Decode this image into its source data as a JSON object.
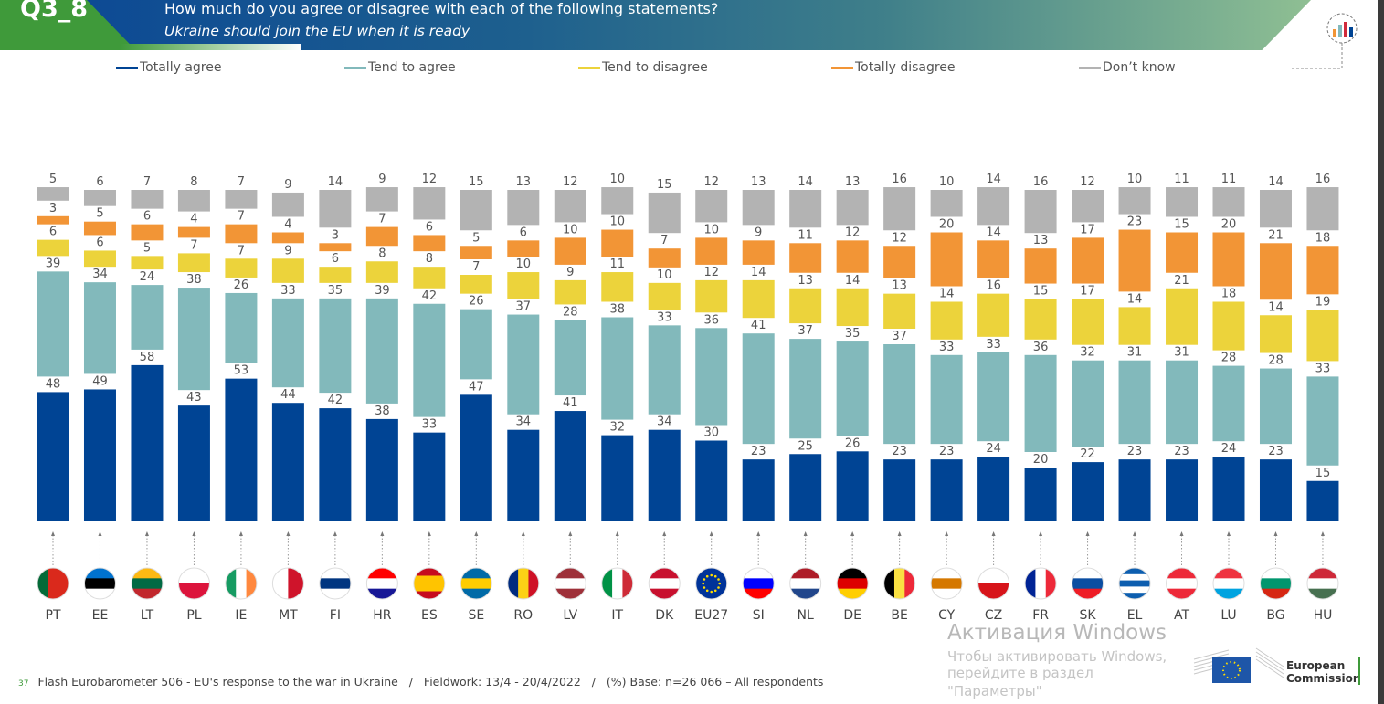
{
  "header": {
    "question_id": "Q3_8",
    "title": "How much do you agree or disagree with each of the following statements?",
    "subtitle": "Ukraine should join the EU when it is ready"
  },
  "chart_data": {
    "type": "bar",
    "stacked": true,
    "legend_placement": "top",
    "grid": false,
    "categories": [
      "PT",
      "EE",
      "LT",
      "PL",
      "IE",
      "MT",
      "FI",
      "HR",
      "ES",
      "SE",
      "RO",
      "LV",
      "IT",
      "DK",
      "EU27",
      "SI",
      "NL",
      "DE",
      "BE",
      "CY",
      "CZ",
      "FR",
      "SK",
      "EL",
      "AT",
      "LU",
      "BG",
      "HU"
    ],
    "series": [
      {
        "name": "Totally agree",
        "color": "#004494",
        "values": [
          48,
          49,
          58,
          43,
          53,
          44,
          42,
          38,
          33,
          47,
          34,
          41,
          32,
          34,
          30,
          23,
          25,
          26,
          23,
          23,
          24,
          20,
          22,
          23,
          23,
          24,
          23,
          15
        ]
      },
      {
        "name": "Tend to agree",
        "color": "#82b9bb",
        "values": [
          39,
          34,
          24,
          38,
          26,
          33,
          35,
          39,
          42,
          26,
          37,
          28,
          38,
          33,
          36,
          41,
          37,
          35,
          37,
          33,
          33,
          36,
          32,
          31,
          31,
          28,
          28,
          33
        ]
      },
      {
        "name": "Tend to disagree",
        "color": "#ecd33b",
        "values": [
          6,
          6,
          5,
          7,
          7,
          9,
          6,
          8,
          8,
          7,
          10,
          9,
          11,
          10,
          12,
          14,
          13,
          14,
          13,
          14,
          16,
          15,
          17,
          14,
          21,
          18,
          14,
          19
        ]
      },
      {
        "name": "Totally disagree",
        "color": "#f29536",
        "values": [
          3,
          5,
          6,
          4,
          7,
          4,
          3,
          7,
          6,
          5,
          6,
          10,
          10,
          7,
          10,
          9,
          11,
          12,
          12,
          20,
          14,
          13,
          17,
          23,
          15,
          20,
          21,
          18
        ]
      },
      {
        "name": "Don’t know",
        "color": "#b3b3b3",
        "values": [
          5,
          6,
          7,
          8,
          7,
          9,
          14,
          9,
          12,
          15,
          13,
          12,
          10,
          15,
          12,
          13,
          14,
          13,
          16,
          10,
          14,
          16,
          12,
          10,
          11,
          11,
          14,
          16
        ]
      }
    ],
    "flags": {
      "PT": {
        "dir": "v",
        "colors": [
          "#046a38",
          "#da291c",
          "#da291c"
        ]
      },
      "EE": {
        "dir": "h",
        "colors": [
          "#0072ce",
          "#000000",
          "#ffffff"
        ]
      },
      "LT": {
        "dir": "h",
        "colors": [
          "#fdb913",
          "#006a44",
          "#c1272d"
        ]
      },
      "PL": {
        "dir": "h",
        "colors": [
          "#ffffff",
          "#dc143c"
        ]
      },
      "IE": {
        "dir": "v",
        "colors": [
          "#169b62",
          "#ffffff",
          "#ff883e"
        ]
      },
      "MT": {
        "dir": "v",
        "colors": [
          "#ffffff",
          "#cf142b"
        ]
      },
      "FI": {
        "dir": "h",
        "colors": [
          "#ffffff",
          "#003580",
          "#ffffff"
        ]
      },
      "HR": {
        "dir": "h",
        "colors": [
          "#ff0000",
          "#ffffff",
          "#171796"
        ]
      },
      "ES": {
        "dir": "h",
        "colors": [
          "#c60b1e",
          "#ffc400",
          "#ffc400",
          "#c60b1e"
        ]
      },
      "SE": {
        "dir": "h",
        "colors": [
          "#006aa7",
          "#fecc00",
          "#006aa7"
        ]
      },
      "RO": {
        "dir": "v",
        "colors": [
          "#002b7f",
          "#fcd116",
          "#ce1126"
        ]
      },
      "LV": {
        "dir": "h",
        "colors": [
          "#9e3039",
          "#ffffff",
          "#9e3039"
        ]
      },
      "IT": {
        "dir": "v",
        "colors": [
          "#009246",
          "#ffffff",
          "#ce2b37"
        ]
      },
      "DK": {
        "dir": "h",
        "colors": [
          "#c8102e",
          "#ffffff",
          "#c8102e"
        ]
      },
      "EU27": {
        "dir": "h",
        "colors": [
          "#003399"
        ]
      },
      "SI": {
        "dir": "h",
        "colors": [
          "#ffffff",
          "#0000ff",
          "#ff0000"
        ]
      },
      "NL": {
        "dir": "h",
        "colors": [
          "#ae1c28",
          "#ffffff",
          "#21468b"
        ]
      },
      "DE": {
        "dir": "h",
        "colors": [
          "#000000",
          "#dd0000",
          "#ffce00"
        ]
      },
      "BE": {
        "dir": "v",
        "colors": [
          "#000000",
          "#fae042",
          "#ed2939"
        ]
      },
      "CY": {
        "dir": "h",
        "colors": [
          "#ffffff",
          "#d57800",
          "#ffffff"
        ]
      },
      "CZ": {
        "dir": "h",
        "colors": [
          "#ffffff",
          "#d7141a"
        ]
      },
      "FR": {
        "dir": "v",
        "colors": [
          "#002395",
          "#ffffff",
          "#ed2939"
        ]
      },
      "SK": {
        "dir": "h",
        "colors": [
          "#ffffff",
          "#0b4ea2",
          "#ee1c25"
        ]
      },
      "EL": {
        "dir": "h",
        "colors": [
          "#0d5eaf",
          "#ffffff",
          "#0d5eaf",
          "#ffffff",
          "#0d5eaf"
        ]
      },
      "AT": {
        "dir": "h",
        "colors": [
          "#ed2939",
          "#ffffff",
          "#ed2939"
        ]
      },
      "LU": {
        "dir": "h",
        "colors": [
          "#ef3340",
          "#ffffff",
          "#00a3e0"
        ]
      },
      "BG": {
        "dir": "h",
        "colors": [
          "#ffffff",
          "#00966e",
          "#d62612"
        ]
      },
      "HU": {
        "dir": "h",
        "colors": [
          "#ce2939",
          "#ffffff",
          "#477050"
        ]
      }
    }
  },
  "footer": {
    "page_number": "37",
    "source": "Flash Eurobarometer 506 - EU's response to the war in Ukraine   /   Fieldwork: 13/4 - 20/4/2022   /   (%) Base: n=26 066 – All respondents"
  },
  "logo": {
    "text_line1": "European",
    "text_line2": "Commission"
  },
  "watermark": {
    "line1": "Активация Windows",
    "line2": "Чтобы активировать Windows, перейдите в раздел",
    "line3": "\"Параметры\""
  },
  "icons": {
    "corner": "bar-chart-icon"
  }
}
